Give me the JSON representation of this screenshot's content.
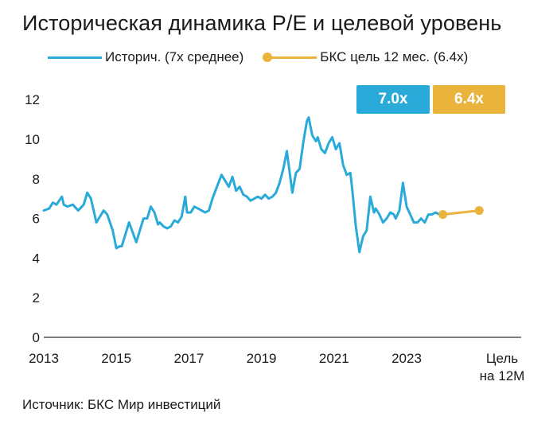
{
  "title": "Историческая динамика P/E и целевой уровень",
  "source": "Источник: БКС Мир инвестиций",
  "colors": {
    "historical": "#2aaad9",
    "target": "#eab33b",
    "axis": "#555555"
  },
  "chart_data": {
    "type": "line",
    "title": "Историческая динамика P/E и целевой уровень",
    "xlabel": "",
    "ylabel": "",
    "ylim": [
      0,
      12
    ],
    "yticks": [
      "0",
      "2",
      "4",
      "6",
      "8",
      "10",
      "12"
    ],
    "grid": false,
    "legend_position": "top",
    "xticks": [
      {
        "x": 2013,
        "label": "2013"
      },
      {
        "x": 2015,
        "label": "2015"
      },
      {
        "x": 2017,
        "label": "2017"
      },
      {
        "x": 2019,
        "label": "2019"
      },
      {
        "x": 2021,
        "label": "2021"
      },
      {
        "x": 2023,
        "label": "2023"
      }
    ],
    "target_label": [
      "Цель",
      "на 12М"
    ],
    "series": [
      {
        "name": "Историч. (7х среднее)",
        "badge": "7.0x",
        "color": "#2aaad9",
        "x": [
          2013.0,
          2013.15,
          2013.25,
          2013.35,
          2013.5,
          2013.55,
          2013.65,
          2013.8,
          2013.95,
          2014.1,
          2014.2,
          2014.3,
          2014.45,
          2014.55,
          2014.65,
          2014.75,
          2014.9,
          2015.0,
          2015.1,
          2015.15,
          2015.25,
          2015.35,
          2015.45,
          2015.55,
          2015.65,
          2015.75,
          2015.85,
          2015.95,
          2016.05,
          2016.15,
          2016.2,
          2016.3,
          2016.4,
          2016.5,
          2016.6,
          2016.7,
          2016.8,
          2016.9,
          2016.95,
          2017.05,
          2017.15,
          2017.25,
          2017.35,
          2017.45,
          2017.55,
          2017.65,
          2017.75,
          2017.9,
          2018.0,
          2018.1,
          2018.2,
          2018.3,
          2018.4,
          2018.5,
          2018.6,
          2018.7,
          2018.8,
          2018.9,
          2019.0,
          2019.1,
          2019.2,
          2019.3,
          2019.4,
          2019.5,
          2019.6,
          2019.7,
          2019.8,
          2019.85,
          2019.95,
          2020.05,
          2020.15,
          2020.25,
          2020.3,
          2020.4,
          2020.5,
          2020.55,
          2020.65,
          2020.75,
          2020.85,
          2020.95,
          2021.05,
          2021.15,
          2021.25,
          2021.35,
          2021.45,
          2021.5,
          2021.6,
          2021.7,
          2021.8,
          2021.9,
          2022.0,
          2022.1,
          2022.15,
          2022.25,
          2022.35,
          2022.45,
          2022.55,
          2022.65,
          2022.7,
          2022.8,
          2022.9,
          2023.0,
          2023.1,
          2023.2,
          2023.3,
          2023.4,
          2023.5,
          2023.6,
          2023.7,
          2023.8,
          2023.9,
          2024.0
        ],
        "y": [
          6.4,
          6.5,
          6.8,
          6.7,
          7.1,
          6.7,
          6.6,
          6.7,
          6.4,
          6.7,
          7.3,
          7.0,
          5.8,
          6.1,
          6.4,
          6.2,
          5.4,
          4.5,
          4.6,
          4.6,
          5.2,
          5.8,
          5.3,
          4.8,
          5.4,
          6.0,
          6.0,
          6.6,
          6.3,
          5.7,
          5.8,
          5.6,
          5.5,
          5.6,
          5.9,
          5.8,
          6.1,
          7.1,
          6.3,
          6.3,
          6.6,
          6.5,
          6.4,
          6.3,
          6.4,
          7.0,
          7.5,
          8.2,
          7.9,
          7.6,
          8.1,
          7.4,
          7.6,
          7.2,
          7.1,
          6.9,
          7.0,
          7.1,
          7.0,
          7.2,
          7.0,
          7.1,
          7.3,
          7.8,
          8.5,
          9.4,
          8.0,
          7.3,
          8.3,
          8.5,
          9.8,
          10.9,
          11.1,
          10.2,
          9.9,
          10.1,
          9.5,
          9.3,
          9.8,
          10.1,
          9.5,
          9.8,
          8.7,
          8.2,
          8.3,
          7.5,
          5.6,
          4.3,
          5.1,
          5.4,
          7.1,
          6.3,
          6.5,
          6.2,
          5.8,
          6.0,
          6.3,
          6.2,
          6.0,
          6.4,
          7.8,
          6.6,
          6.2,
          5.8,
          5.8,
          6.0,
          5.8,
          6.2,
          6.2,
          6.3,
          6.2,
          6.3
        ]
      },
      {
        "name": "БКС цель 12 мес. (6.4x)",
        "badge": "6.4x",
        "color": "#eab33b",
        "x": [
          2024.0,
          2025.0
        ],
        "y": [
          6.2,
          6.4
        ]
      }
    ]
  }
}
